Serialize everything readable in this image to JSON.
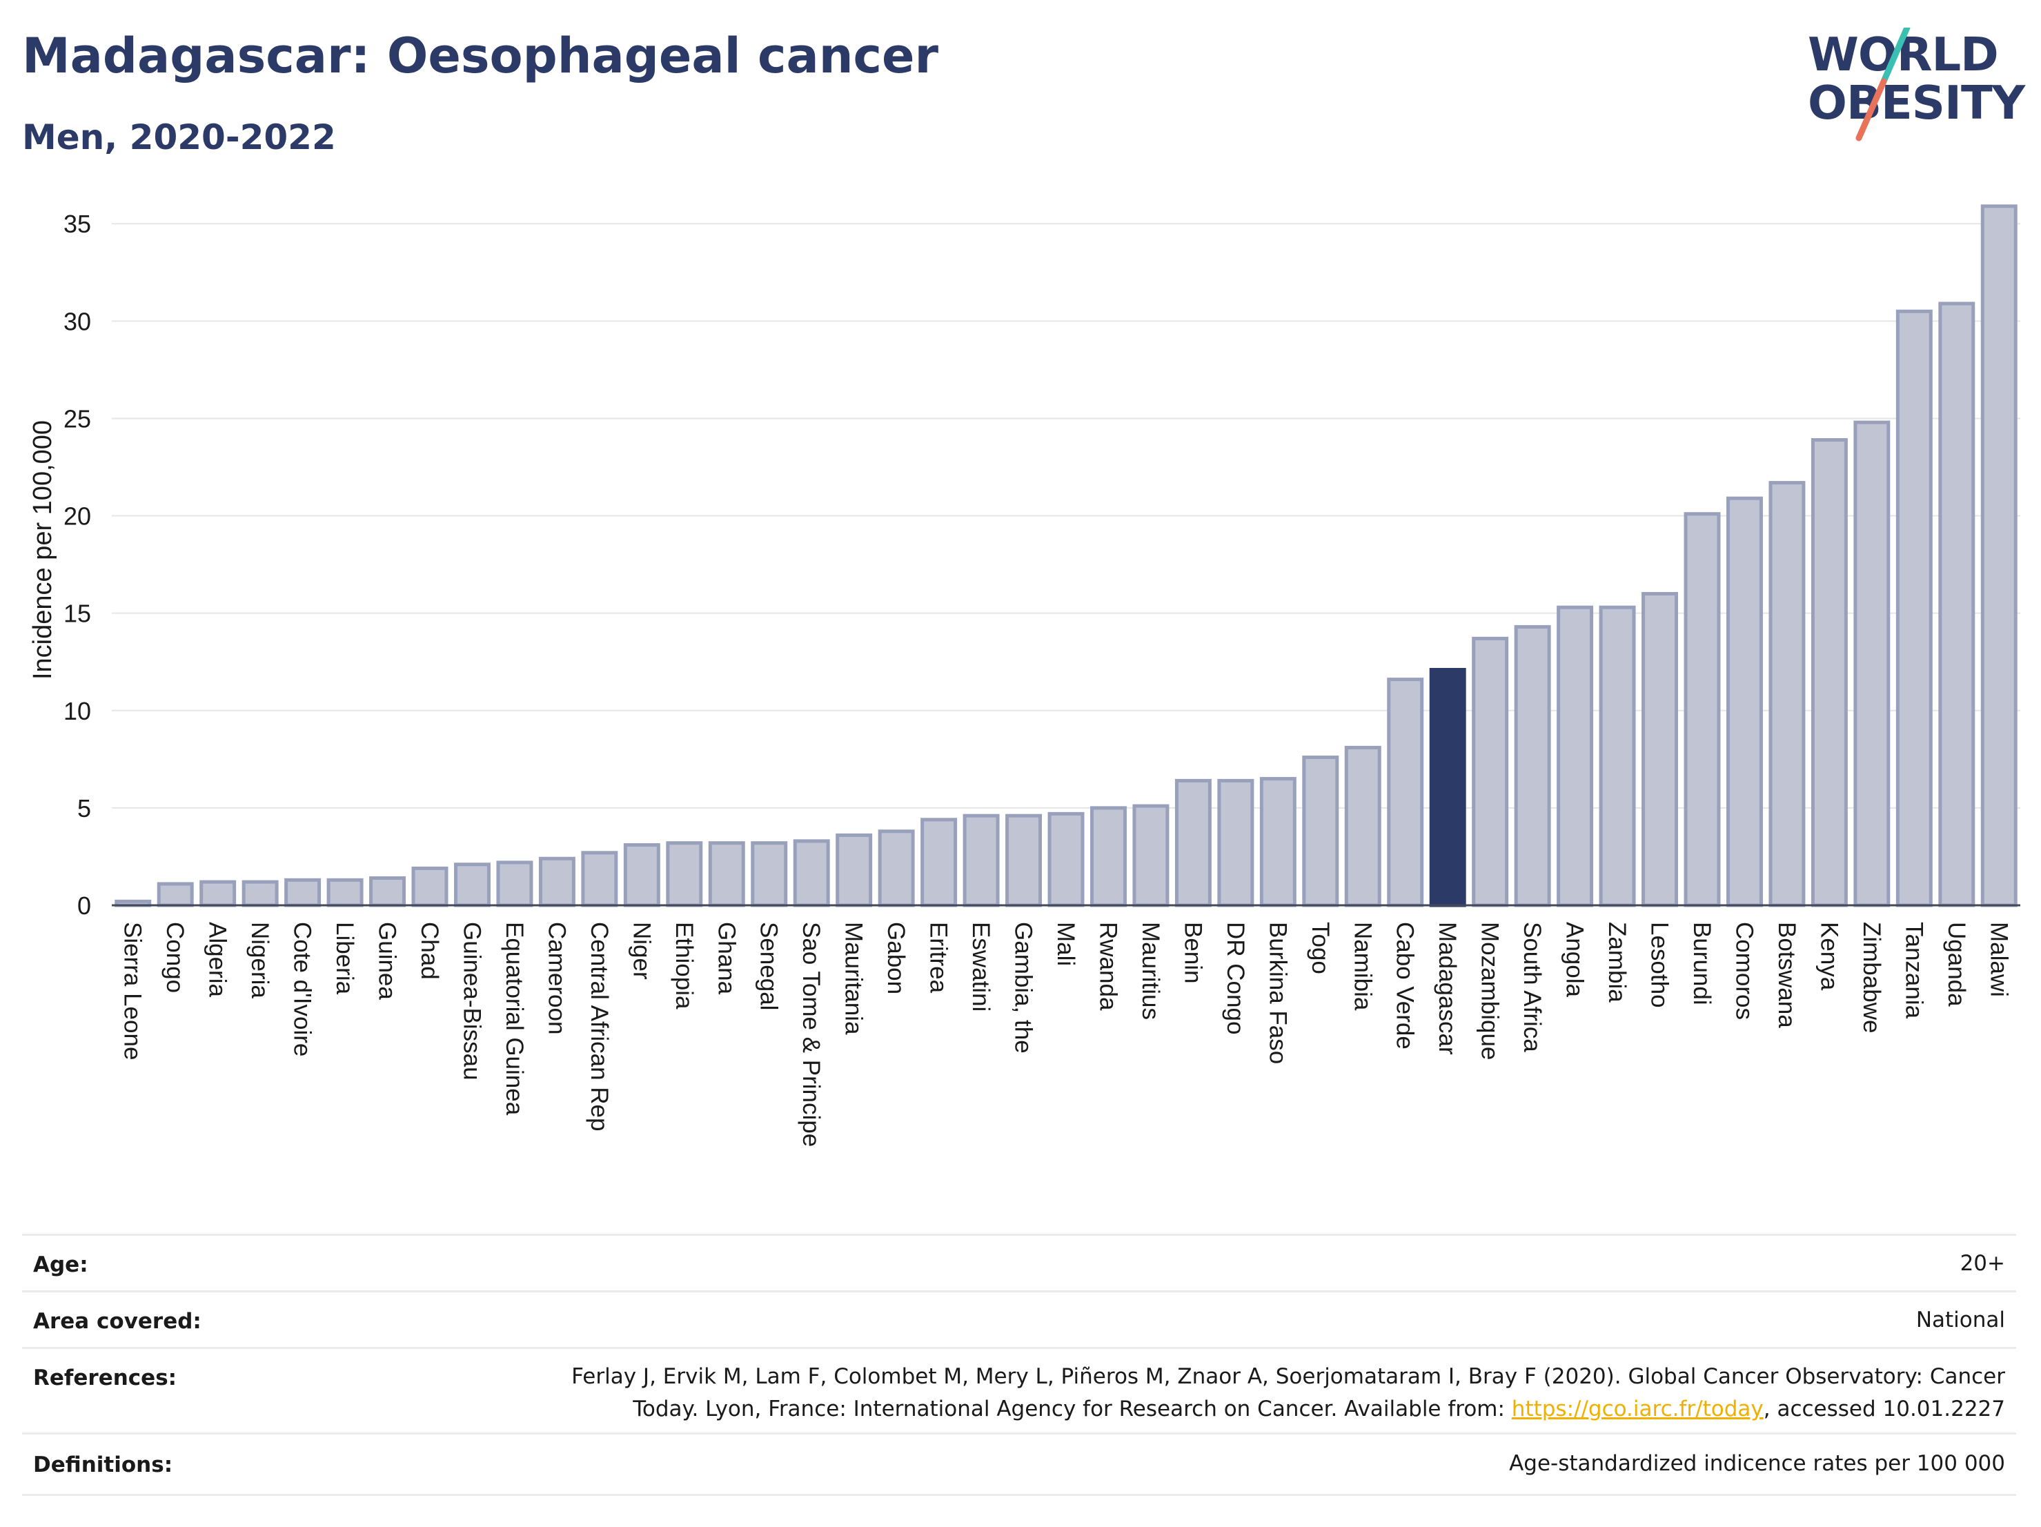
{
  "header": {
    "title": "Madagascar: Oesophageal cancer",
    "subtitle": "Men, 2020-2022"
  },
  "logo": {
    "line1": "WORLD",
    "line2": "OBESITY",
    "slash_colors": [
      "#3bbfb2",
      "#e8735a"
    ]
  },
  "colors": {
    "bar": "#c0c4d3",
    "bar_stroke": "#98a0bb",
    "highlight": "#2b3a67",
    "axis_text": "#1a1a1a"
  },
  "chart_data": {
    "type": "bar",
    "title": "",
    "xlabel": "",
    "ylabel": "Incidence per 100,000",
    "ylim": [
      0,
      36
    ],
    "yticks": [
      0,
      5,
      10,
      15,
      20,
      25,
      30,
      35
    ],
    "grid": true,
    "highlight": "Madagascar",
    "categories": [
      "Sierra Leone",
      "Congo",
      "Algeria",
      "Nigeria",
      "Cote d'Ivoire",
      "Liberia",
      "Guinea",
      "Chad",
      "Guinea-Bissau",
      "Equatorial Guinea",
      "Cameroon",
      "Central African Rep",
      "Niger",
      "Ethiopia",
      "Ghana",
      "Senegal",
      "Sao Tome & Principe",
      "Mauritania",
      "Gabon",
      "Eritrea",
      "Eswatini",
      "Gambia, the",
      "Mali",
      "Rwanda",
      "Mauritius",
      "Benin",
      "DR Congo",
      "Burkina Faso",
      "Togo",
      "Namibia",
      "Cabo Verde",
      "Madagascar",
      "Mozambique",
      "South Africa",
      "Angola",
      "Zambia",
      "Lesotho",
      "Burundi",
      "Comoros",
      "Botswana",
      "Kenya",
      "Zimbabwe",
      "Tanzania",
      "Uganda",
      "Malawi"
    ],
    "values": [
      0.2,
      1.1,
      1.2,
      1.2,
      1.3,
      1.3,
      1.4,
      1.9,
      2.1,
      2.2,
      2.4,
      2.7,
      3.1,
      3.2,
      3.2,
      3.2,
      3.3,
      3.6,
      3.8,
      4.4,
      4.6,
      4.6,
      4.7,
      5.0,
      5.1,
      6.4,
      6.4,
      6.5,
      7.6,
      8.1,
      11.6,
      12.1,
      13.7,
      14.3,
      15.3,
      15.3,
      16.0,
      20.1,
      20.9,
      21.7,
      23.9,
      24.8,
      30.5,
      30.9,
      35.9
    ]
  },
  "info": {
    "rows": [
      {
        "label": "Age:",
        "value": "20+"
      },
      {
        "label": "Area covered:",
        "value": "National"
      },
      {
        "label": "References:",
        "value_line1": "Ferlay J, Ervik M, Lam F, Colombet M, Mery L, Piñeros M, Znaor A, Soerjomataram I, Bray F (2020). Global Cancer Observatory: Cancer",
        "value_line2_before": "Today. Lyon, France: International Agency for Research on Cancer. Available from: ",
        "value_link": "https://gco.iarc.fr/today",
        "value_line2_after": ", accessed 10.01.2227"
      },
      {
        "label": "Definitions:",
        "value": "Age-standardized indicence rates per 100 000"
      }
    ]
  }
}
